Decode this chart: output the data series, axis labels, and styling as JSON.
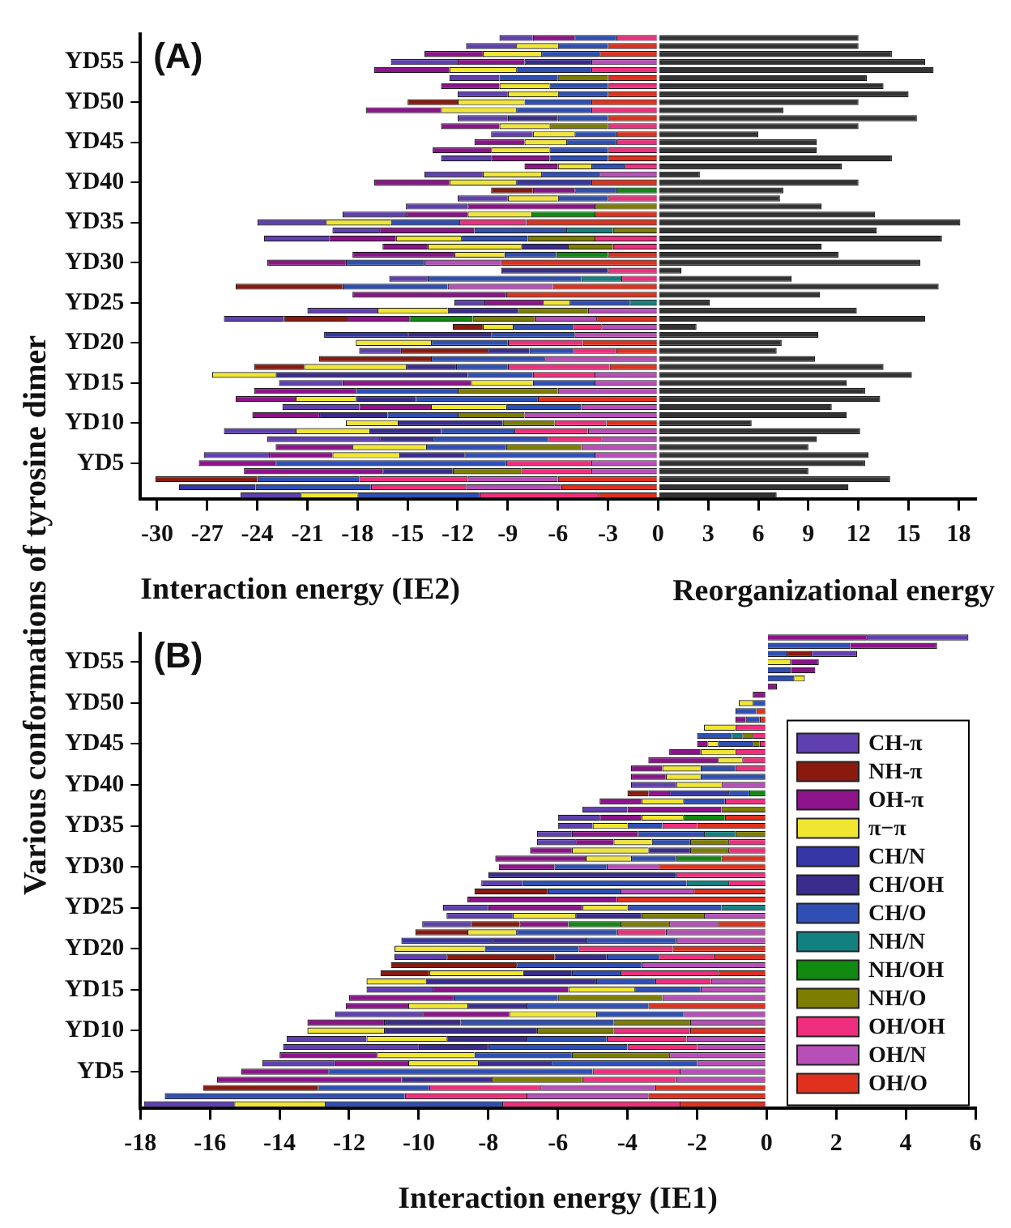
{
  "chart_data": [
    {
      "type": "bar",
      "orientation": "horizontal",
      "stacked": true,
      "title": "(A)",
      "xlabel": "Interaction energy (IE2)",
      "ylabel": "Various conformations of tyrosine dimer",
      "annotations": [
        "Reorganizational energy"
      ],
      "categories": [
        null,
        null,
        null,
        "YD55",
        null,
        null,
        null,
        null,
        "YD50",
        null,
        null,
        null,
        null,
        "YD45",
        null,
        null,
        null,
        null,
        "YD40",
        null,
        null,
        null,
        null,
        "YD35",
        null,
        null,
        null,
        null,
        "YD30",
        null,
        null,
        null,
        null,
        "YD25",
        null,
        null,
        null,
        null,
        "YD20",
        null,
        null,
        null,
        null,
        "YD15",
        null,
        null,
        null,
        null,
        "YD10",
        null,
        null,
        null,
        null,
        "YD5",
        null,
        null,
        null,
        null
      ],
      "series": [
        {
          "color": "#e0301e",
          "values": [
            0,
            -3,
            -3.5,
            0,
            0,
            -3,
            0,
            -3,
            -4,
            0,
            -3,
            0,
            -2.5,
            0,
            0,
            -3,
            0,
            0,
            -4,
            0,
            0,
            0,
            -3.8,
            -7.9,
            0,
            0,
            0,
            -3,
            -9.4,
            0,
            0,
            -6.3,
            -9.1,
            0,
            0,
            -3.7,
            0,
            0,
            -4.5,
            -2.5,
            0,
            -2.9,
            0,
            0,
            0,
            -7.2,
            0,
            0,
            -3.1,
            0,
            0,
            0,
            0,
            0,
            0,
            -6,
            -5.8,
            -3.6
          ]
        },
        {
          "color": "#b84fb8",
          "values": [
            0,
            0,
            0,
            -4,
            0,
            0,
            0,
            0,
            0,
            0,
            0,
            0,
            0,
            0,
            0,
            0,
            0,
            -3.5,
            0,
            0,
            0,
            0,
            0,
            0,
            0,
            0,
            0,
            0,
            -4.6,
            0,
            0,
            -6.3,
            0,
            0,
            -4.2,
            -3.7,
            -3.4,
            -5,
            0,
            0,
            -6.8,
            0,
            -3.8,
            -3.8,
            -6,
            0,
            -4.6,
            -8,
            0,
            -4.2,
            -3.4,
            -4.6,
            -3.8,
            -4,
            -4,
            -5.4,
            -5.7,
            0
          ]
        },
        {
          "color": "#ef2f7d",
          "values": [
            -2.5,
            0,
            0,
            0,
            -4,
            0,
            -3,
            0,
            0,
            -4,
            0,
            -3,
            0,
            -2.5,
            -3,
            0,
            -2,
            0,
            0,
            0,
            -3,
            0,
            0,
            -4,
            0,
            -3.8,
            -2.7,
            0,
            0,
            -3,
            -2.2,
            0,
            0,
            0,
            0,
            0,
            -1.7,
            0,
            -4.5,
            -2.6,
            0,
            -6.1,
            -3.7,
            0,
            0,
            0,
            0,
            0,
            -3.1,
            -4.4,
            -3.2,
            0,
            0,
            -5.1,
            -4.2,
            -6.5,
            -5.7,
            -7.1
          ]
        },
        {
          "color": "#7d7d00",
          "values": [
            0,
            0,
            0,
            0,
            0,
            -3,
            0,
            0,
            0,
            0,
            0,
            -3.5,
            0,
            0,
            0,
            0,
            0,
            0,
            0,
            0,
            0,
            -3.8,
            0,
            0,
            -2.7,
            -4,
            -2.7,
            0,
            0,
            0,
            0,
            0,
            0,
            0,
            -4.2,
            -3.7,
            0,
            0,
            0,
            0,
            0,
            0,
            0,
            0,
            -6,
            0,
            0,
            -4,
            -3.1,
            0,
            0,
            -4.5,
            0,
            0,
            -4.1,
            0,
            0,
            0
          ]
        },
        {
          "color": "#108a10",
          "values": [
            0,
            0,
            0,
            0,
            0,
            0,
            0,
            0,
            0,
            0,
            0,
            0,
            0,
            0,
            0,
            0,
            0,
            0,
            0,
            -2.5,
            0,
            0,
            -3.8,
            0,
            0,
            0,
            0,
            -3.1,
            0,
            0,
            0,
            0,
            0,
            0,
            0,
            -3.8,
            0,
            0,
            0,
            0,
            0,
            0,
            0,
            0,
            0,
            0,
            0,
            0,
            0,
            0,
            0,
            0,
            0,
            0,
            0,
            0,
            0,
            0
          ]
        },
        {
          "color": "#128080",
          "values": [
            0,
            0,
            0,
            0,
            0,
            0,
            0,
            0,
            0,
            0,
            0,
            0,
            0,
            0,
            0,
            0,
            0,
            0,
            0,
            0,
            0,
            0,
            0,
            0,
            -2.8,
            0,
            0,
            0,
            0,
            0,
            -2.4,
            0,
            0,
            -1.7,
            0,
            0,
            0,
            0,
            0,
            0,
            0,
            0,
            0,
            0,
            0,
            0,
            0,
            0,
            0,
            0,
            0,
            0,
            0,
            0,
            0,
            0,
            0,
            0
          ]
        },
        {
          "color": "#2f4fb5",
          "values": [
            -2.5,
            -3,
            -3.5,
            0,
            -4.5,
            -3.5,
            -3.5,
            -3,
            -4,
            -4.5,
            -3,
            0,
            -2.5,
            -3,
            -3.5,
            -3.5,
            -2,
            -3.5,
            0,
            -2.5,
            -3,
            0,
            0,
            -4.1,
            -5.5,
            -4,
            0,
            -3.1,
            -4.7,
            0,
            -9.2,
            -6.3,
            0,
            -3.6,
            0,
            0,
            -3.6,
            -5,
            -4.6,
            -2.6,
            -6.8,
            -3.1,
            -3.9,
            -3.7,
            -6.1,
            -7.3,
            -4.5,
            -4.2,
            0,
            -4.4,
            -6.9,
            -4.8,
            -7.8,
            -13.8,
            0,
            -6.1,
            -6.9,
            -7.3
          ]
        },
        {
          "color": "#3a2c8c",
          "values": [
            0,
            0,
            0,
            -4,
            0,
            0,
            0,
            0,
            0,
            0,
            -3,
            0,
            0,
            0,
            0,
            0,
            0,
            0,
            0,
            0,
            0,
            0,
            0,
            0,
            0,
            0,
            -2.8,
            0,
            0,
            -6.4,
            0,
            0,
            0,
            0,
            -4.2,
            0,
            0,
            -5,
            0,
            -2.5,
            0,
            -3,
            -11.5,
            0,
            0,
            -3.6,
            0,
            -4.1,
            -6.3,
            -4.3,
            -3.2,
            0,
            -3.9,
            0,
            -4.2,
            0,
            0,
            0
          ]
        },
        {
          "color": "#3636a6",
          "values": [
            0,
            0,
            0,
            0,
            0,
            0,
            0,
            0,
            0,
            0,
            0,
            0,
            0,
            0,
            0,
            0,
            0,
            0,
            -4.5,
            0,
            0,
            0,
            0,
            0,
            0,
            0,
            0,
            0,
            0,
            0,
            0,
            0,
            0,
            0,
            0,
            0,
            0,
            -5,
            0,
            0,
            0,
            0,
            0,
            0,
            0,
            0,
            0,
            0,
            0,
            0,
            0,
            0,
            0,
            0,
            0,
            0,
            -4.6,
            0
          ]
        },
        {
          "color": "#f0e632",
          "values": [
            0,
            -2.5,
            -3.5,
            0,
            -4,
            0,
            -3,
            -3,
            -4,
            -4.5,
            0,
            -3,
            -2.5,
            -2.5,
            -3.5,
            0,
            -2,
            -3.5,
            -4,
            0,
            -3,
            0,
            -3.8,
            -3.9,
            0,
            -3.9,
            -5.6,
            -3,
            0,
            0,
            0,
            0,
            0,
            -1.6,
            -4.2,
            0,
            -1.8,
            0,
            -4.5,
            0,
            0,
            -6.1,
            -3.8,
            -3.7,
            0,
            -3.6,
            -4.5,
            0,
            -3.1,
            -4.4,
            0,
            -4.4,
            -4,
            0,
            0,
            0,
            0,
            -3.4
          ]
        },
        {
          "color": "#8c138a",
          "values": [
            -2.5,
            0,
            -3.5,
            -4,
            -4.5,
            0,
            -3.5,
            0,
            0,
            -4.5,
            0,
            -3.5,
            0,
            -3,
            -3.5,
            -3.5,
            -2,
            0,
            -4.5,
            -2.5,
            0,
            -7.6,
            -3.7,
            0,
            -5.7,
            -4,
            -2.7,
            -6.1,
            -4.7,
            0,
            0,
            0,
            -9.2,
            -3.5,
            0,
            -3.7,
            0,
            0,
            0,
            0,
            0,
            0,
            0,
            -7.7,
            -6.1,
            -3.6,
            -4.3,
            -4,
            0,
            0,
            0,
            -4.6,
            -3.8,
            -4.6,
            -8.3,
            0,
            0,
            0
          ]
        },
        {
          "color": "#8a1a0f",
          "values": [
            0,
            0,
            0,
            0,
            0,
            0,
            0,
            0,
            -3,
            0,
            0,
            0,
            0,
            0,
            0,
            0,
            0,
            0,
            0,
            -2.5,
            0,
            0,
            0,
            0,
            0,
            0,
            0,
            0,
            0,
            0,
            0,
            -6.4,
            0,
            0,
            0,
            -3.8,
            -1.8,
            0,
            0,
            -5.2,
            -6.7,
            -3,
            0,
            0,
            0,
            0,
            0,
            0,
            0,
            0,
            0,
            0,
            0,
            0,
            0,
            -6.1,
            0,
            0
          ]
        },
        {
          "color": "#6040b0",
          "values": [
            -2,
            -3,
            0,
            -4,
            0,
            -3,
            0,
            -3,
            0,
            0,
            -3,
            0,
            -2.5,
            0,
            0,
            -3,
            0,
            -3.5,
            0,
            0,
            -3,
            -3.7,
            -3.8,
            -4.1,
            -2.8,
            -3.9,
            0,
            0,
            0,
            0,
            -2.3,
            0,
            0,
            -1.8,
            -4.2,
            -3.6,
            0,
            0,
            0,
            -2.5,
            0,
            0,
            0,
            -3.8,
            0,
            0,
            -4.6,
            0,
            0,
            -4.3,
            -6.7,
            0,
            -3.9,
            0,
            0,
            0,
            0,
            -3.6
          ]
        },
        {
          "color": "#333333",
          "values": [
            12,
            12,
            14,
            16,
            16.5,
            12.5,
            13.5,
            15,
            12,
            7.5,
            15.5,
            12,
            6,
            9.5,
            9.5,
            14,
            11,
            2.5,
            12,
            7.5,
            7.3,
            9.8,
            13,
            18.1,
            13.1,
            17,
            9.8,
            10.8,
            15.7,
            1.4,
            8,
            16.8,
            9.7,
            3.1,
            11.9,
            16,
            2.3,
            9.6,
            7.4,
            7.1,
            9.4,
            13.5,
            15.2,
            11.3,
            12.4,
            13.3,
            10.4,
            11.3,
            5.6,
            12.1,
            9.5,
            9,
            12.6,
            12.4,
            9,
            13.9,
            11.4,
            7.1
          ]
        }
      ],
      "xlim": [
        -31,
        19
      ],
      "xticks": [
        -30,
        -27,
        -24,
        -21,
        -18,
        -15,
        -12,
        -9,
        -6,
        -3,
        0,
        3,
        6,
        9,
        12,
        15,
        18
      ]
    },
    {
      "type": "bar",
      "orientation": "horizontal",
      "stacked": true,
      "title": "(B)",
      "xlabel": "Interaction energy (IE1)",
      "legend": "bottom right",
      "categories": [
        null,
        null,
        null,
        "YD55",
        null,
        null,
        null,
        null,
        "YD50",
        null,
        null,
        null,
        null,
        "YD45",
        null,
        null,
        null,
        null,
        "YD40",
        null,
        null,
        null,
        null,
        "YD35",
        null,
        null,
        null,
        null,
        "YD30",
        null,
        null,
        null,
        null,
        "YD25",
        null,
        null,
        null,
        null,
        "YD20",
        null,
        null,
        null,
        null,
        "YD15",
        null,
        null,
        null,
        null,
        "YD10",
        null,
        null,
        null,
        null,
        "YD5",
        null,
        null,
        null,
        null
      ],
      "series": [
        {
          "name": "OH/O",
          "color": "#e0301e",
          "values": [
            0,
            0,
            0,
            0,
            0,
            0,
            0,
            0,
            0,
            -0.3,
            -0.2,
            0,
            0,
            0,
            0,
            0,
            0,
            0,
            0,
            0,
            0,
            0,
            -1.2,
            -2,
            0,
            0,
            0,
            -1.3,
            -3.1,
            0,
            0,
            -2.1,
            -4.3,
            0,
            0,
            -1.4,
            0,
            0,
            -2.7,
            -1.5,
            0,
            -1.4,
            0,
            0,
            0,
            -3.4,
            0,
            0,
            -2.2,
            0,
            0,
            0,
            0,
            0,
            0,
            -3.2,
            -3.4,
            -2.5
          ]
        },
        {
          "name": "OH/N",
          "color": "#b84fb8",
          "values": [
            0,
            0,
            0,
            0,
            0,
            0,
            0,
            0,
            0,
            0,
            0,
            0,
            0,
            0,
            0,
            0,
            0,
            0,
            -1.3,
            0,
            0,
            0,
            0,
            0,
            0,
            0,
            0,
            0,
            -1.5,
            0,
            0,
            -2.1,
            0,
            0,
            -1.8,
            -1.4,
            -2.9,
            -2.6,
            0,
            0,
            -3.6,
            0,
            -1.6,
            -1.9,
            -3,
            0,
            -2.4,
            -2.2,
            0,
            -2.3,
            -2,
            -2.8,
            -2,
            -2.5,
            -2.6,
            -3.3,
            -3.5,
            0
          ]
        },
        {
          "name": "OH/OH",
          "color": "#ef2f7d",
          "values": [
            0,
            0,
            0,
            0,
            0,
            0,
            0,
            0,
            0,
            0,
            0,
            -0.9,
            -0.4,
            -0.2,
            -0.9,
            -0.7,
            -0.9,
            0,
            0,
            0,
            -1.2,
            0,
            0,
            -1,
            0,
            -1.1,
            -1.1,
            0,
            0,
            -2.6,
            -1.1,
            0,
            0,
            0,
            0,
            0,
            -1.4,
            0,
            -2.7,
            -1.6,
            0,
            -2.8,
            -1.6,
            0,
            0,
            0,
            0,
            0,
            -2.2,
            -2.3,
            -2,
            0,
            0,
            -2.5,
            -2.7,
            -3.2,
            -3.5,
            -5.1
          ]
        },
        {
          "name": "NH/O",
          "color": "#7d7d00",
          "values": [
            0,
            0,
            0,
            0,
            0,
            0,
            0,
            0,
            0,
            0,
            0,
            0,
            -0.3,
            -0.2,
            0,
            0,
            0,
            0,
            0,
            0,
            0,
            -1.3,
            0,
            0,
            -0.9,
            -1.1,
            -1.1,
            0,
            0,
            0,
            0,
            0,
            0,
            0,
            -1.8,
            -1.4,
            0,
            0,
            0,
            0,
            0,
            0,
            0,
            0,
            -3,
            0,
            0,
            -2.2,
            -2.2,
            0,
            0,
            -2.8,
            0,
            0,
            -2.6,
            0,
            0,
            0
          ]
        },
        {
          "name": "NH/OH",
          "color": "#108a10",
          "values": [
            0,
            0,
            0,
            0,
            0,
            0,
            0,
            0,
            0,
            0,
            0,
            0,
            0,
            0,
            0,
            0,
            0,
            0,
            0,
            -0.5,
            0,
            0,
            -1.2,
            0,
            0,
            0,
            0,
            -1.3,
            0,
            0,
            0,
            0,
            0,
            0,
            0,
            -1.5,
            0,
            0,
            0,
            0,
            0,
            0,
            0,
            0,
            0,
            0,
            0,
            0,
            0,
            0,
            0,
            0,
            0,
            0,
            0,
            0,
            0,
            0
          ]
        },
        {
          "name": "NH/N",
          "color": "#128080",
          "values": [
            0,
            0,
            0,
            0,
            0,
            0,
            0,
            0,
            0,
            0,
            0,
            0,
            -0.3,
            0,
            0,
            0,
            0,
            0,
            0,
            0,
            0,
            0,
            0,
            0,
            -0.9,
            0,
            0,
            0,
            0,
            0,
            -1.2,
            0,
            0,
            -1.3,
            0,
            0,
            0,
            0,
            0,
            0,
            0,
            0,
            0,
            0,
            0,
            0,
            0,
            0,
            0,
            0,
            0,
            0,
            0,
            0,
            0,
            0,
            0,
            0
          ]
        },
        {
          "name": "CH/O",
          "color": "#2f4fb5",
          "values": [
            0,
            2.4,
            0.6,
            0,
            0.7,
            0.8,
            0,
            0,
            -0.4,
            -0.6,
            -0.4,
            0,
            -1,
            -1,
            0,
            0,
            -1,
            -1.9,
            0,
            -0.6,
            -1.2,
            0,
            0,
            -1,
            -1.9,
            -1.1,
            0,
            -1.3,
            -1.5,
            0,
            -4.7,
            -2.1,
            0,
            -2.7,
            0,
            0,
            -2.9,
            -2.6,
            -2.7,
            -1.5,
            -3.6,
            -1.4,
            -1.7,
            -1.9,
            -3,
            -3.5,
            -2.5,
            -4.4,
            0,
            -2.3,
            -4,
            -2.8,
            -4.2,
            -7.6,
            0,
            -3.2,
            -6.9,
            -5.1
          ]
        },
        {
          "name": "CH/OH",
          "color": "#3a2c8c",
          "values": [
            0,
            0,
            0,
            0,
            0,
            0,
            0,
            0,
            0,
            0,
            0,
            0,
            0,
            0,
            0,
            0,
            0,
            0,
            0,
            0,
            0,
            0,
            0,
            0,
            0,
            0,
            -1.2,
            0,
            0,
            -5.4,
            0,
            0,
            0,
            0,
            -1.9,
            0,
            0,
            -2.7,
            0,
            -1.5,
            0,
            -1.4,
            -4.9,
            0,
            0,
            -1.7,
            0,
            -2.2,
            -4.4,
            -2.3,
            -2,
            0,
            -2.1,
            0,
            -2.6,
            0,
            0,
            0
          ]
        },
        {
          "name": "CH/N",
          "color": "#3636a6",
          "values": [
            0,
            0,
            0,
            0,
            0,
            0,
            0,
            0,
            0,
            0,
            0,
            0,
            0,
            0,
            0,
            0,
            0,
            0,
            0,
            -1.7,
            0,
            0,
            0,
            0,
            0,
            0,
            0,
            0,
            0,
            0,
            0,
            0,
            0,
            0,
            0,
            0,
            0,
            -2.6,
            0,
            0,
            0,
            0,
            0,
            0,
            0,
            0,
            0,
            0,
            0,
            0,
            0,
            0,
            0,
            0,
            0,
            0,
            0,
            0
          ]
        },
        {
          "name": "π−π",
          "color": "#f0e632",
          "values": [
            0,
            0,
            0,
            0.7,
            0,
            0.3,
            0,
            0,
            -0.4,
            0,
            0,
            -0.9,
            0,
            -0.3,
            -1,
            -0.7,
            -1.1,
            -1,
            -1.3,
            0,
            -1.2,
            0,
            -1.2,
            -1,
            0,
            -1.1,
            -2.2,
            -1.3,
            0,
            0,
            0,
            0,
            0,
            -1.3,
            -1.8,
            0,
            -1.4,
            0,
            -2.6,
            0,
            0,
            -2.7,
            -1.7,
            -1.9,
            0,
            -1.7,
            -2.5,
            0,
            -2.2,
            -2.3,
            0,
            -2.8,
            -2,
            0,
            0,
            0,
            0,
            -2.6
          ]
        },
        {
          "name": "OH-π",
          "color": "#8c138a",
          "values": [
            2.9,
            2.5,
            0,
            0.8,
            0.7,
            0,
            0.3,
            -0.4,
            0,
            0,
            -0.3,
            0,
            0,
            -0.3,
            -0.9,
            -2,
            -0.9,
            -1,
            0,
            -0.6,
            -1.2,
            -2.7,
            -1.2,
            0,
            -1.9,
            -1.1,
            -1.2,
            -2.6,
            -1.6,
            0,
            0,
            0,
            -4.3,
            -2.7,
            0,
            -1.4,
            0,
            0,
            0,
            0,
            0,
            0,
            0,
            -3.9,
            -3,
            -1.8,
            -2.5,
            -2.2,
            0,
            0,
            0,
            -2.8,
            -2.1,
            -2.5,
            -5.3,
            0,
            0,
            0
          ]
        },
        {
          "name": "NH-π",
          "color": "#8a1a0f",
          "values": [
            0,
            0,
            0.7,
            0,
            0,
            0,
            0,
            0,
            0,
            0,
            0,
            0,
            0,
            0,
            0,
            0,
            0,
            0,
            0,
            -0.6,
            0,
            0,
            0,
            0,
            0,
            0,
            0,
            0,
            0,
            0,
            0,
            -2.1,
            0,
            0,
            0,
            -1.4,
            -1.5,
            0,
            0,
            -3.1,
            -3.6,
            -1.4,
            0,
            0,
            0,
            0,
            0,
            0,
            0,
            0,
            0,
            0,
            0,
            0,
            0,
            -3.3,
            0,
            0
          ]
        },
        {
          "name": "CH-π",
          "color": "#6040b0",
          "values": [
            2.9,
            0,
            1.3,
            0,
            0,
            0,
            0,
            0,
            0,
            0,
            0,
            0,
            0,
            0,
            0,
            0,
            0,
            0,
            -1.3,
            0,
            0,
            -1.3,
            -1.2,
            -1,
            -1,
            -1.1,
            0,
            0,
            0,
            0,
            -1.2,
            0,
            0,
            -1.3,
            -1.9,
            -1.4,
            0,
            0,
            0,
            -1.5,
            0,
            0,
            0,
            -1.9,
            0,
            0,
            -2.5,
            0,
            0,
            -2.3,
            -3.9,
            0,
            -2.1,
            0,
            0,
            0,
            0,
            -2.6
          ]
        }
      ],
      "xlim": [
        -18,
        6
      ],
      "xticks": [
        -18,
        -16,
        -14,
        -12,
        -10,
        -8,
        -6,
        -4,
        -2,
        0,
        2,
        4,
        6
      ]
    }
  ]
}
